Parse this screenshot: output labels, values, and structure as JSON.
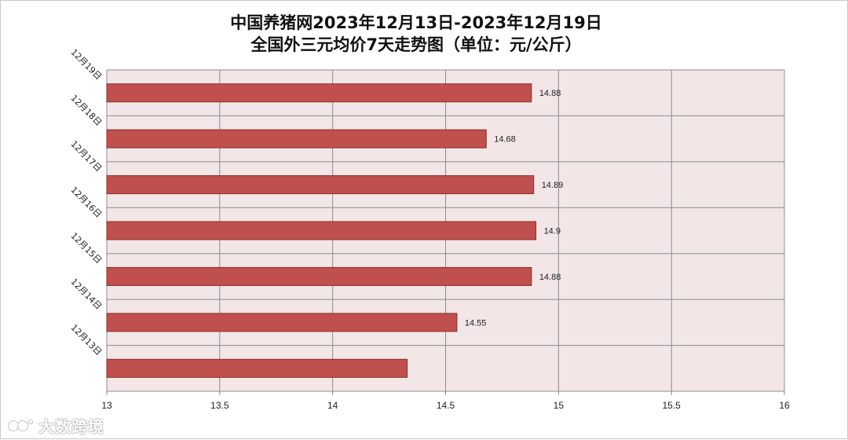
{
  "title_line1": "中国养猪网2023年12月13日-2023年12月19日",
  "title_line2": "全国外三元均价7天走势图（单位：元/公斤）",
  "watermark": "大数跨境",
  "colors": {
    "bar_fill": "#c0504d",
    "bar_stroke": "#8b2d2b",
    "plot_bg": "#f2e6e6",
    "grid": "#8c8c8c"
  },
  "chart_data": {
    "type": "bar",
    "orientation": "horizontal",
    "categories": [
      "12月19日",
      "12月18日",
      "12月17日",
      "12月16日",
      "12月15日",
      "12月14日",
      "12月13日"
    ],
    "values": [
      14.88,
      14.68,
      14.89,
      14.9,
      14.88,
      14.55,
      14.33
    ],
    "data_labels": [
      "14.88",
      "14.68",
      "14.89",
      "14.9",
      "14.88",
      "14.55",
      ""
    ],
    "xlim": [
      13,
      16
    ],
    "xticks": [
      "13",
      "13.5",
      "14",
      "14.5",
      "15",
      "15.5",
      "16"
    ],
    "grid": true,
    "legend": "none"
  }
}
